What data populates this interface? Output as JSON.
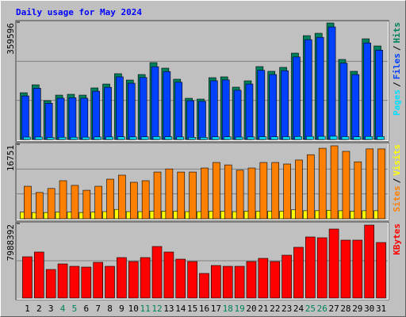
{
  "chart_data": {
    "type": "bar",
    "title": "Daily usage for May 2024",
    "categories": [
      "1",
      "2",
      "3",
      "4",
      "5",
      "6",
      "7",
      "8",
      "9",
      "10",
      "11",
      "12",
      "13",
      "14",
      "15",
      "16",
      "17",
      "18",
      "19",
      "20",
      "21",
      "22",
      "23",
      "24",
      "25",
      "26",
      "27",
      "28",
      "29",
      "30",
      "31"
    ],
    "weekend_color": "#00805c",
    "weekend": [
      "4",
      "5",
      "11",
      "12",
      "18",
      "19",
      "25",
      "26"
    ],
    "legend_separator": "/",
    "panels": [
      {
        "ylim": [
          0,
          359596
        ],
        "yticks": [
          359596
        ],
        "grid_divisions": 3,
        "series": [
          {
            "name": "Hits",
            "color": "#00805c",
            "values": [
              143300,
              167600,
              119000,
              136000,
              138500,
              136000,
              158000,
              170000,
              201700,
              182200,
              199200,
              235700,
              218700,
              184700,
              126300,
              123900,
              189500,
              192000,
              160400,
              179800,
              223500,
              209000,
              221100,
              264800,
              318300,
              325600,
              357200,
              245400,
              209000,
              308600,
              286700
            ]
          },
          {
            "name": "Files",
            "color": "#0040ff",
            "values": [
              133500,
              157000,
              111000,
              126500,
              128000,
              126500,
              148000,
              160000,
              192000,
              172500,
              190000,
              223000,
              208000,
              175500,
              119000,
              117000,
              180000,
              182500,
              151000,
              170000,
              212000,
              199000,
              211000,
              253000,
              306000,
              313000,
              345000,
              234000,
              199000,
              296000,
              274000
            ]
          },
          {
            "name": "Pages",
            "color": "#00e0ff",
            "values": [
              7200,
              7500,
              6100,
              6800,
              6900,
              7000,
              7600,
              7800,
              8100,
              7700,
              8000,
              8600,
              8200,
              7700,
              6500,
              6400,
              7900,
              8000,
              7300,
              7600,
              8400,
              8100,
              8300,
              8800,
              9300,
              9500,
              9900,
              8600,
              8000,
              9200,
              8900
            ]
          }
        ]
      },
      {
        "ylim": [
          0,
          16751
        ],
        "yticks": [
          16751
        ],
        "grid_divisions": 3,
        "series": [
          {
            "name": "Visits",
            "color": "#ffff00",
            "values": [
              1500,
              1400,
              1400,
              1500,
              1500,
              1400,
              1500,
              1600,
              2100,
              1600,
              1600,
              1700,
              1700,
              1700,
              1600,
              1600,
              1700,
              1700,
              1600,
              1700,
              1700,
              1700,
              1700,
              2000,
              1800,
              1800,
              1900,
              1800,
              1700,
              1800,
              1800
            ]
          },
          {
            "name": "Sites",
            "color": "#ff8000",
            "values": [
              7300,
              5900,
              6800,
              8550,
              7500,
              6400,
              7300,
              8900,
              9800,
              8200,
              8550,
              10500,
              11200,
              10500,
              10500,
              11400,
              12650,
              12100,
              10900,
              11400,
              12650,
              12650,
              12300,
              13200,
              14400,
              15850,
              16400,
              15150,
              12800,
              15700,
              15700
            ]
          }
        ]
      },
      {
        "ylim": [
          0,
          7988392
        ],
        "yticks": [
          7988392
        ],
        "grid_divisions": 2,
        "series": [
          {
            "name": "KBytes",
            "color": "#ff0000",
            "values": [
              4419000,
              4929000,
              3059000,
              3654000,
              3399000,
              3314000,
              3824000,
              3399000,
              4334000,
              3909000,
              4334000,
              5524000,
              4929000,
              4164000,
              3909000,
              2634000,
              3484000,
              3399000,
              3399000,
              3909000,
              4249000,
              3909000,
              4589000,
              5439000,
              6544000,
              6459000,
              7393000,
              6204000,
              6204000,
              7818000,
              5949000
            ]
          }
        ]
      }
    ]
  }
}
